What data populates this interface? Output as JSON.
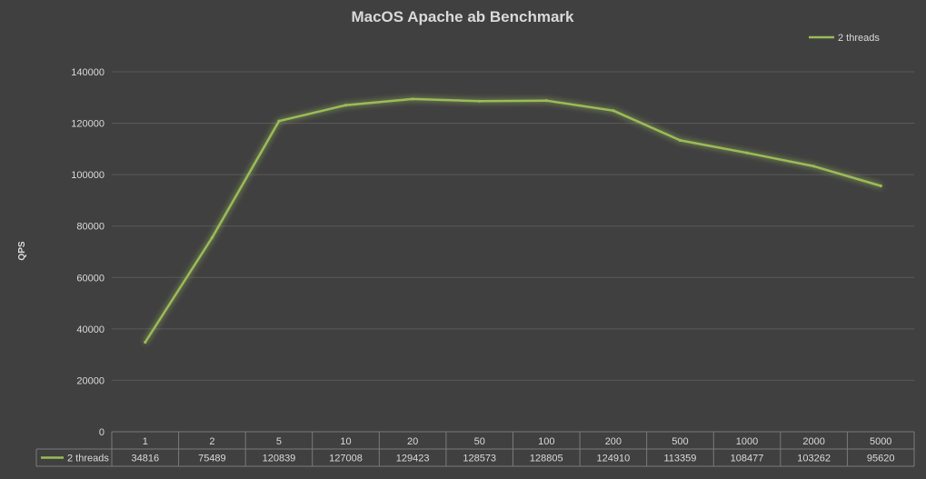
{
  "chart_data": {
    "type": "line",
    "title": "MacOS Apache ab Benchmark",
    "xlabel": "",
    "ylabel": "QPS",
    "ylim": [
      0,
      140000
    ],
    "yticks": [
      "0",
      "20000",
      "40000",
      "60000",
      "80000",
      "100000",
      "120000",
      "140000"
    ],
    "categories": [
      "1",
      "2",
      "5",
      "10",
      "20",
      "50",
      "100",
      "200",
      "500",
      "1000",
      "2000",
      "5000"
    ],
    "grid": true,
    "legend_position": "top-right",
    "data_table": true,
    "series": [
      {
        "name": "2 threads",
        "color": "#9bbb59",
        "values": [
          34816,
          75489,
          120839,
          127008,
          129423,
          128573,
          128805,
          124910,
          113359,
          108477,
          103262,
          95620
        ]
      }
    ]
  }
}
